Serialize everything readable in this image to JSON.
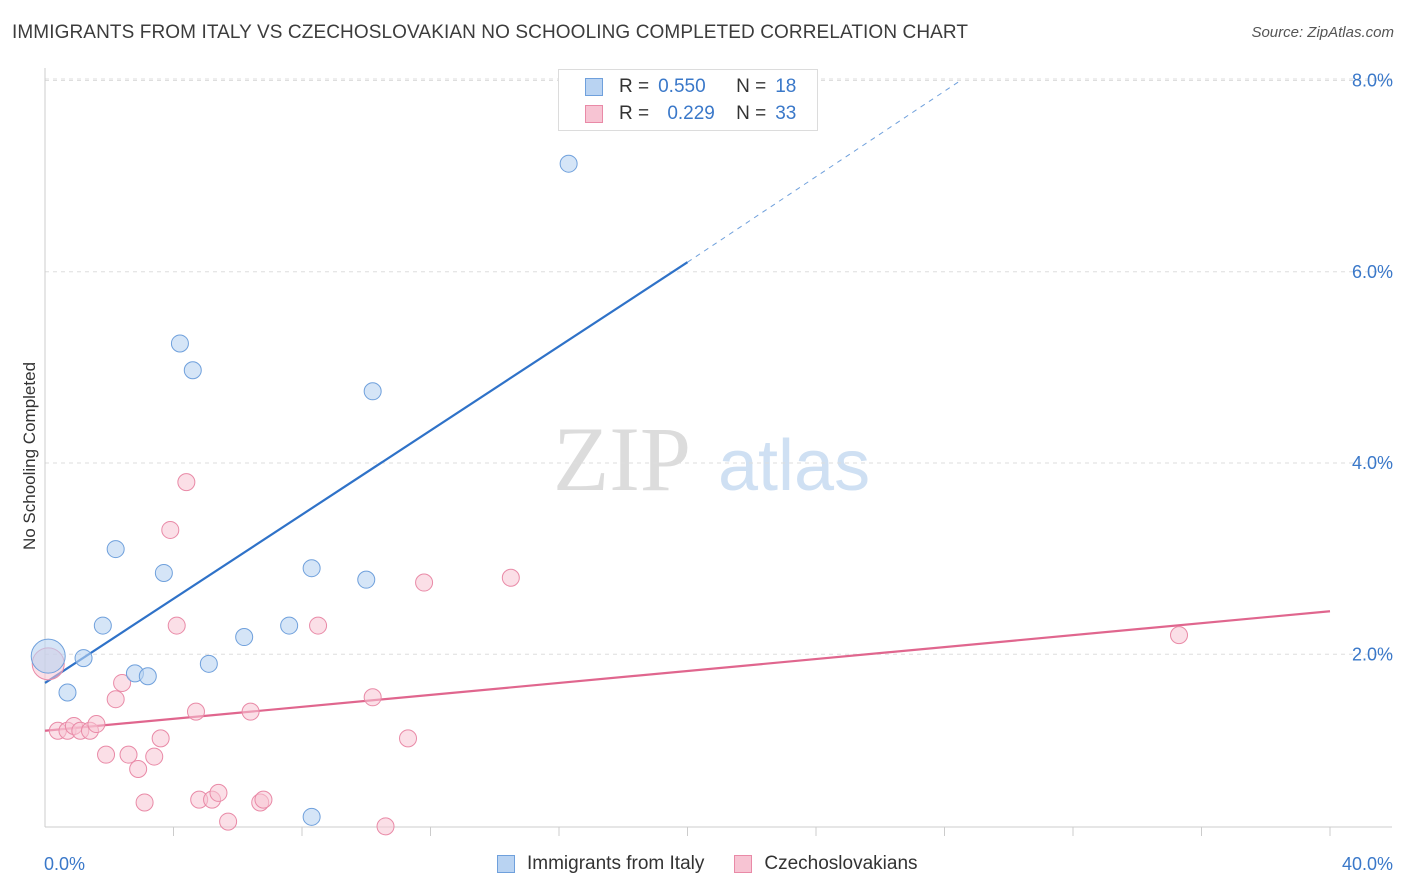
{
  "title": "IMMIGRANTS FROM ITALY VS CZECHOSLOVAKIAN NO SCHOOLING COMPLETED CORRELATION CHART",
  "source": "Source: ZipAtlas.com",
  "watermark": {
    "part1": "ZIP",
    "part2": "atlas"
  },
  "legend": {
    "rows": [
      {
        "r_label": "R =",
        "r_value": "0.550",
        "n_label": "N =",
        "n_value": "18"
      },
      {
        "r_label": "R =",
        "r_value": "0.229",
        "n_label": "N =",
        "n_value": "33"
      }
    ],
    "bottom": [
      "Immigrants from Italy",
      "Czechoslovakians"
    ]
  },
  "colors": {
    "blue_fill": "#b9d3f2",
    "blue_stroke": "#6fa0dc",
    "blue_line": "#2f72c8",
    "pink_fill": "#f7c4d3",
    "pink_stroke": "#e98aa7",
    "pink_line": "#e0668e",
    "tick_label": "#3a78c9",
    "grid": "#dedede"
  },
  "chart_data": {
    "type": "scatter",
    "title": "IMMIGRANTS FROM ITALY VS CZECHOSLOVAKIAN NO SCHOOLING COMPLETED CORRELATION CHART",
    "xlabel": "",
    "ylabel": "No Schooling Completed",
    "xlim": [
      0,
      40
    ],
    "ylim": [
      0,
      8.4
    ],
    "x_tick_labels": [
      "0.0%",
      "40.0%"
    ],
    "y_ticks": [
      2,
      4,
      6,
      8
    ],
    "y_tick_labels": [
      "2.0%",
      "4.0%",
      "6.0%",
      "8.0%"
    ],
    "grid": "horizontal dashed",
    "legend_position": "top-center",
    "series": [
      {
        "name": "Immigrants from Italy",
        "r": 0.55,
        "n": 18,
        "color": "#6fa0dc",
        "points": [
          [
            0.1,
            1.98
          ],
          [
            0.7,
            1.6
          ],
          [
            1.2,
            1.96
          ],
          [
            1.8,
            2.3
          ],
          [
            2.2,
            3.1
          ],
          [
            2.8,
            1.8
          ],
          [
            3.2,
            1.77
          ],
          [
            3.7,
            2.85
          ],
          [
            4.2,
            5.25
          ],
          [
            4.6,
            4.97
          ],
          [
            5.1,
            1.9
          ],
          [
            6.2,
            2.18
          ],
          [
            7.6,
            2.3
          ],
          [
            8.3,
            0.3
          ],
          [
            8.3,
            2.9
          ],
          [
            10.0,
            2.78
          ],
          [
            10.2,
            4.75
          ],
          [
            16.3,
            7.13
          ]
        ],
        "trend": {
          "x0": 0,
          "y0": 1.7,
          "x1": 20.0,
          "y1": 6.1,
          "dashed_to_x": 28.5,
          "dashed_to_y": 8.0
        }
      },
      {
        "name": "Czechoslovakians",
        "r": 0.229,
        "n": 33,
        "color": "#e98aa7",
        "points": [
          [
            0.1,
            1.9
          ],
          [
            0.4,
            1.2
          ],
          [
            0.7,
            1.2
          ],
          [
            0.9,
            1.25
          ],
          [
            1.1,
            1.2
          ],
          [
            1.4,
            1.2
          ],
          [
            1.6,
            1.27
          ],
          [
            1.9,
            0.95
          ],
          [
            2.2,
            1.53
          ],
          [
            2.4,
            1.7
          ],
          [
            2.6,
            0.95
          ],
          [
            2.9,
            0.8
          ],
          [
            3.1,
            0.45
          ],
          [
            3.4,
            0.93
          ],
          [
            3.6,
            1.12
          ],
          [
            3.9,
            3.3
          ],
          [
            4.1,
            2.3
          ],
          [
            4.4,
            3.8
          ],
          [
            4.7,
            1.4
          ],
          [
            4.8,
            0.48
          ],
          [
            5.2,
            0.48
          ],
          [
            5.4,
            0.55
          ],
          [
            5.7,
            0.25
          ],
          [
            6.4,
            1.4
          ],
          [
            6.7,
            0.45
          ],
          [
            6.8,
            0.48
          ],
          [
            8.5,
            2.3
          ],
          [
            10.2,
            1.55
          ],
          [
            10.6,
            0.2
          ],
          [
            11.3,
            1.12
          ],
          [
            11.8,
            2.75
          ],
          [
            14.5,
            2.8
          ],
          [
            35.3,
            2.2
          ]
        ],
        "trend": {
          "x0": 0,
          "y0": 1.2,
          "x1": 40,
          "y1": 2.45
        }
      }
    ]
  }
}
